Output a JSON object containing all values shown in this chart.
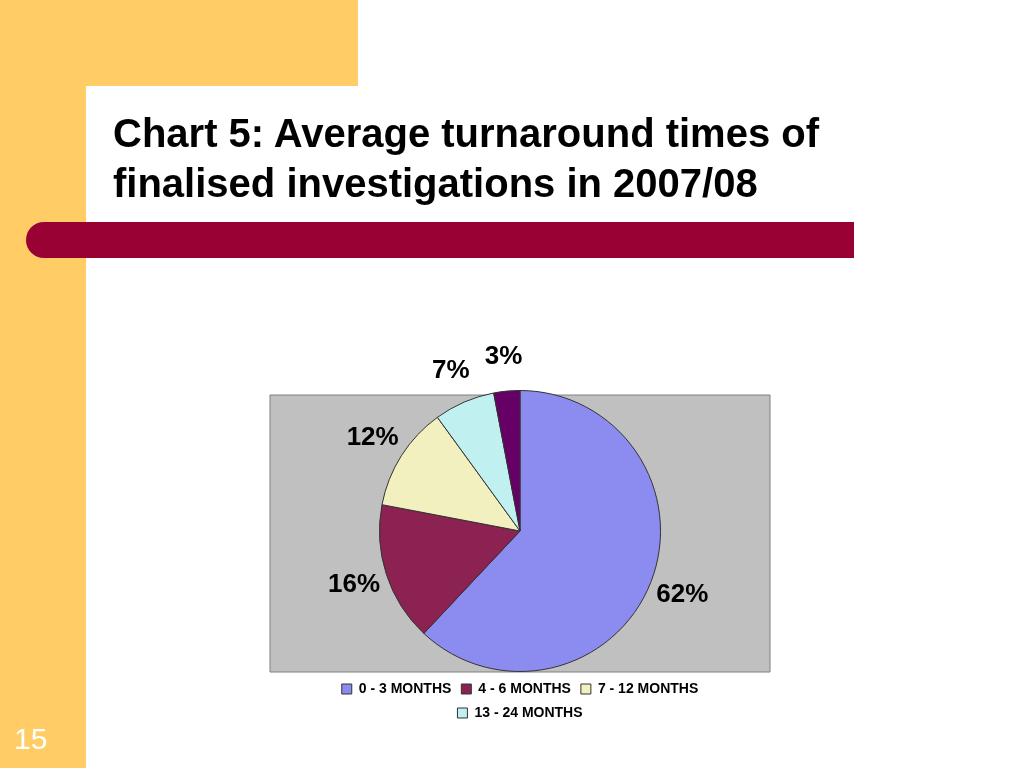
{
  "chart_data": {
    "type": "pie",
    "title": "Chart 5: Average turnaround times of finalised investigations in 2007/08",
    "categories": [
      "0 - 3 MONTHS",
      "4 - 6 MONTHS",
      "7 - 12 MONTHS",
      "13 - 24 MONTHS",
      null
    ],
    "values": [
      62,
      16,
      12,
      7,
      3
    ],
    "colors": [
      "#8c8cf0",
      "#8b2252",
      "#f3f0c0",
      "#c0f0f0",
      "#660066"
    ],
    "value_labels": [
      "62%",
      "16%",
      "12%",
      "7%",
      "3%"
    ],
    "legend": "bottom",
    "annotations": [
      "15"
    ]
  }
}
